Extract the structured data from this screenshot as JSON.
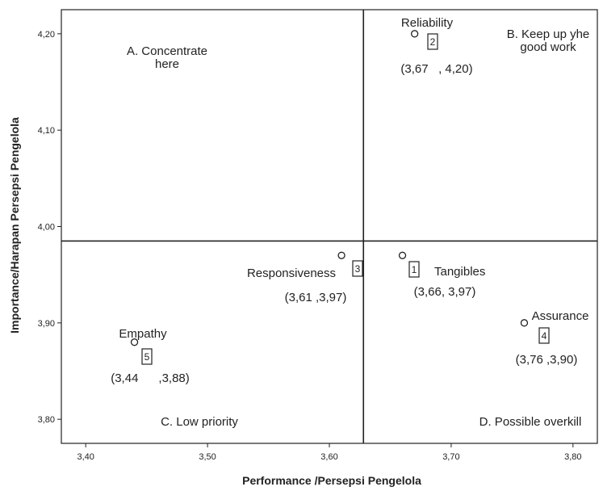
{
  "chart_data": {
    "type": "scatter",
    "title": "",
    "xlabel": "Performance /Persepsi Pengelola",
    "ylabel": "Importance/Harapan Persepsi Pengelola",
    "xlim": [
      3.38,
      3.82
    ],
    "ylim": [
      3.775,
      4.225
    ],
    "x_ticks": [
      {
        "value": 3.4,
        "label": "3,40"
      },
      {
        "value": 3.5,
        "label": "3,50"
      },
      {
        "value": 3.6,
        "label": "3,60"
      },
      {
        "value": 3.7,
        "label": "3,70"
      },
      {
        "value": 3.8,
        "label": "3,80"
      }
    ],
    "y_ticks": [
      {
        "value": 3.8,
        "label": "3,80"
      },
      {
        "value": 3.9,
        "label": "3,90"
      },
      {
        "value": 4.0,
        "label": "4,00"
      },
      {
        "value": 4.1,
        "label": "4,10"
      },
      {
        "value": 4.2,
        "label": "4,20"
      }
    ],
    "reference_lines": {
      "x": 3.628,
      "y": 3.985
    },
    "grid": false,
    "points": [
      {
        "id": "tangibles",
        "name": "Tangibles",
        "number": "1",
        "x": 3.66,
        "y": 3.97,
        "coord_label": "(3,66, 3,97)"
      },
      {
        "id": "reliability",
        "name": "Reliability",
        "number": "2",
        "x": 3.67,
        "y": 4.2,
        "coord_label": "(3,67   , 4,20)"
      },
      {
        "id": "responsiveness",
        "name": "Responsiveness",
        "number": "3",
        "x": 3.61,
        "y": 3.97,
        "coord_label": "(3,61 ,3,97)"
      },
      {
        "id": "assurance",
        "name": "Assurance",
        "number": "4",
        "x": 3.76,
        "y": 3.9,
        "coord_label": "(3,76 ,3,90)"
      },
      {
        "id": "empathy",
        "name": "Empathy",
        "number": "5",
        "x": 3.44,
        "y": 3.88,
        "coord_label": "(3,44      ,3,88)"
      }
    ],
    "quadrants": [
      {
        "id": "a",
        "lines": [
          "A. Concentrate",
          "here"
        ]
      },
      {
        "id": "b",
        "lines": [
          "B. Keep up yhe",
          "good work"
        ]
      },
      {
        "id": "c",
        "lines": [
          "C. Low priority"
        ]
      },
      {
        "id": "d",
        "lines": [
          "D. Possible overkill"
        ]
      }
    ]
  }
}
